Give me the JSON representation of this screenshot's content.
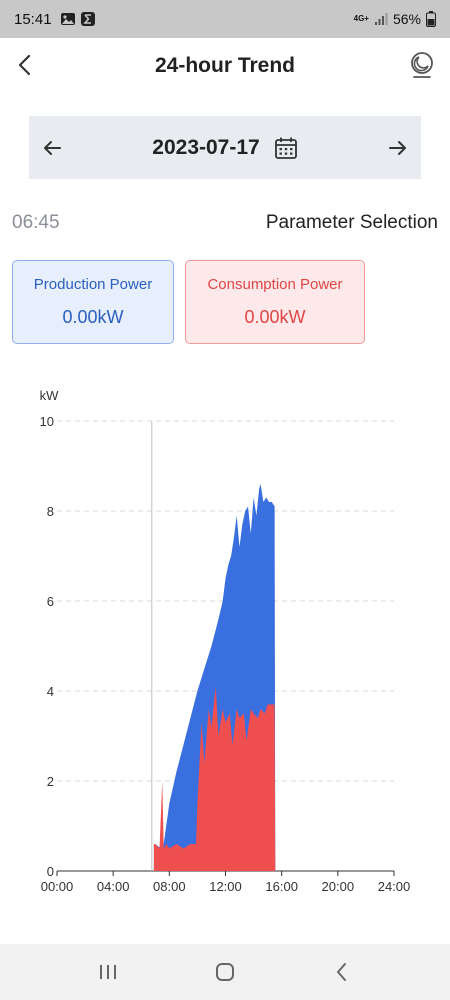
{
  "status_bar": {
    "time": "15:41",
    "network": "4G+",
    "battery": "56%",
    "icons": [
      "gallery-icon",
      "sigma-app-icon",
      "signal-icon",
      "battery-icon"
    ]
  },
  "header": {
    "title": "24-hour Trend",
    "back_icon": "chevron-left-icon",
    "theme_icon": "moon-theme-icon"
  },
  "date_nav": {
    "date": "2023-07-17",
    "prev_icon": "arrow-left-icon",
    "next_icon": "arrow-right-icon",
    "calendar_icon": "calendar-icon"
  },
  "cursor_time": "06:45",
  "parameter_selection_label": "Parameter Selection",
  "cards": {
    "production": {
      "label": "Production Power",
      "value": "0.00kW",
      "color": "#2a5fbf"
    },
    "consumption": {
      "label": "Consumption Power",
      "value": "0.00kW",
      "color": "#e04545"
    }
  },
  "colors": {
    "production_fill": "#3a6fe0",
    "consumption_fill": "#ef4f4f",
    "grid": "#d9d9d9",
    "cursor_line": "#c8c8c8"
  },
  "chart_data": {
    "type": "area",
    "ylabel": "kW",
    "ylim": [
      0,
      10
    ],
    "yticks": [
      "0",
      "2",
      "4",
      "6",
      "8",
      "10"
    ],
    "xlim": [
      0,
      24
    ],
    "xticks": [
      "00:00",
      "04:00",
      "08:00",
      "12:00",
      "16:00",
      "20:00",
      "24:00"
    ],
    "grid": true,
    "cursor_x": 6.75,
    "series": [
      {
        "name": "Production Power",
        "x": [
          6.9,
          7.0,
          7.4,
          7.6,
          8.0,
          8.5,
          9.0,
          9.5,
          10.0,
          10.5,
          11.0,
          11.5,
          11.8,
          12.0,
          12.2,
          12.4,
          12.6,
          12.8,
          13.0,
          13.2,
          13.4,
          13.6,
          13.8,
          14.0,
          14.2,
          14.4,
          14.5,
          14.7,
          14.9,
          15.1,
          15.3,
          15.5,
          15.55
        ],
        "y": [
          0.6,
          0.6,
          0.5,
          0.6,
          1.5,
          2.2,
          2.8,
          3.4,
          4.0,
          4.5,
          5.0,
          5.6,
          6.0,
          6.5,
          6.8,
          7.0,
          7.4,
          7.9,
          7.2,
          7.7,
          8.0,
          8.1,
          7.5,
          8.3,
          7.9,
          8.5,
          8.6,
          8.2,
          8.3,
          8.2,
          8.2,
          8.1,
          0
        ]
      },
      {
        "name": "Consumption Power",
        "x": [
          6.9,
          7.0,
          7.3,
          7.5,
          7.6,
          7.8,
          8.0,
          8.5,
          9.0,
          9.5,
          9.9,
          10.0,
          10.3,
          10.5,
          10.8,
          11.0,
          11.3,
          11.5,
          11.8,
          12.0,
          12.3,
          12.5,
          12.8,
          13.0,
          13.3,
          13.5,
          13.8,
          14.0,
          14.3,
          14.5,
          14.8,
          15.0,
          15.3,
          15.5,
          15.55
        ],
        "y": [
          0.6,
          0.6,
          0.5,
          2.0,
          0.5,
          0.6,
          0.5,
          0.6,
          0.5,
          0.6,
          0.6,
          1.5,
          3.3,
          2.4,
          3.6,
          3.2,
          4.1,
          3.0,
          3.6,
          3.3,
          3.5,
          2.8,
          3.6,
          3.4,
          3.5,
          2.9,
          3.6,
          3.5,
          3.4,
          3.6,
          3.5,
          3.7,
          3.7,
          3.7,
          0
        ]
      }
    ]
  }
}
